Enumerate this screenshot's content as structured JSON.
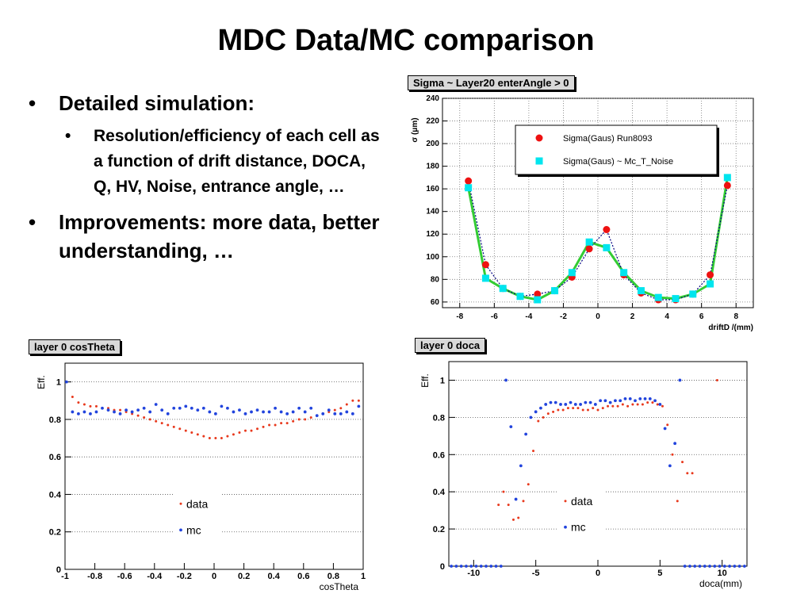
{
  "slide": {
    "title": "MDC Data/MC comparison",
    "bullets": [
      {
        "text": "Detailed simulation:",
        "level": 1
      },
      {
        "text": "Resolution/efficiency of each cell as a function of drift distance, DOCA, Q, HV, Noise, entrance angle, …",
        "level": 2
      },
      {
        "text": "Improvements: more data, better understanding, …",
        "level": 1
      }
    ]
  },
  "chart_data": [
    {
      "type": "line",
      "title": "Sigma ~ Layer20  enterAngle > 0",
      "xlabel": "driftD /(mm)",
      "ylabel": "σ (μm)",
      "xlim": [
        -9,
        9
      ],
      "ylim": [
        55,
        240
      ],
      "xticks": [
        -8,
        -6,
        -4,
        -2,
        0,
        2,
        4,
        6,
        8
      ],
      "yticks": [
        60,
        80,
        100,
        120,
        140,
        160,
        180,
        200,
        220,
        240
      ],
      "grid": true,
      "legend_position": "top-right",
      "fit_color": "#33cc33",
      "series": [
        {
          "name": "Sigma(Gaus)   Run8093",
          "color": "#ee1111",
          "marker": "circle",
          "x": [
            -7.5,
            -6.5,
            -5.5,
            -4.5,
            -3.5,
            -2.5,
            -1.5,
            -0.5,
            0.5,
            1.5,
            2.5,
            3.5,
            4.5,
            5.5,
            6.5,
            7.5
          ],
          "y": [
            167,
            93,
            72,
            65,
            67,
            70,
            82,
            107,
            124,
            84,
            68,
            62,
            62,
            67,
            84,
            163
          ]
        },
        {
          "name": "Sigma(Gaus) ~ Mc_T_Noise",
          "color": "#00e5ee",
          "marker": "square",
          "x": [
            -7.5,
            -6.5,
            -5.5,
            -4.5,
            -3.5,
            -2.5,
            -1.5,
            -0.5,
            0.5,
            1.5,
            2.5,
            3.5,
            4.5,
            5.5,
            6.5,
            7.5
          ],
          "y": [
            161,
            81,
            72,
            65,
            62,
            70,
            86,
            113,
            108,
            86,
            70,
            64,
            63,
            67,
            76,
            170
          ]
        }
      ]
    },
    {
      "type": "scatter",
      "title": "layer 0 cosTheta",
      "xlabel": "cosTheta",
      "ylabel": "Eff.",
      "xlim": [
        -1,
        1
      ],
      "ylim": [
        0,
        1.1
      ],
      "xticks": [
        -1,
        -0.8,
        -0.6,
        -0.4,
        -0.2,
        0,
        0.2,
        0.4,
        0.6,
        0.8,
        1
      ],
      "yticks": [
        0,
        0.2,
        0.4,
        0.6,
        0.8,
        1
      ],
      "series": [
        {
          "name": "data",
          "color": "#e8391d",
          "x": [
            -0.95,
            -0.91,
            -0.87,
            -0.83,
            -0.79,
            -0.75,
            -0.71,
            -0.67,
            -0.63,
            -0.59,
            -0.55,
            -0.51,
            -0.47,
            -0.43,
            -0.39,
            -0.35,
            -0.31,
            -0.27,
            -0.23,
            -0.19,
            -0.15,
            -0.11,
            -0.07,
            -0.03,
            0.01,
            0.05,
            0.09,
            0.13,
            0.17,
            0.21,
            0.25,
            0.29,
            0.33,
            0.37,
            0.41,
            0.45,
            0.49,
            0.53,
            0.57,
            0.61,
            0.65,
            0.69,
            0.73,
            0.77,
            0.81,
            0.85,
            0.89,
            0.93,
            0.97
          ],
          "y": [
            0.92,
            0.89,
            0.88,
            0.87,
            0.87,
            0.86,
            0.86,
            0.85,
            0.85,
            0.84,
            0.83,
            0.82,
            0.81,
            0.8,
            0.79,
            0.78,
            0.77,
            0.76,
            0.75,
            0.74,
            0.73,
            0.72,
            0.71,
            0.7,
            0.7,
            0.7,
            0.71,
            0.72,
            0.73,
            0.74,
            0.74,
            0.75,
            0.76,
            0.77,
            0.77,
            0.78,
            0.78,
            0.79,
            0.8,
            0.8,
            0.81,
            0.82,
            0.83,
            0.84,
            0.85,
            0.86,
            0.88,
            0.9,
            0.9
          ]
        },
        {
          "name": "mc",
          "color": "#2244dd",
          "x": [
            -0.99,
            -0.95,
            -0.91,
            -0.87,
            -0.83,
            -0.79,
            -0.75,
            -0.71,
            -0.67,
            -0.63,
            -0.59,
            -0.55,
            -0.51,
            -0.47,
            -0.43,
            -0.39,
            -0.35,
            -0.31,
            -0.27,
            -0.23,
            -0.19,
            -0.15,
            -0.11,
            -0.07,
            -0.03,
            0.01,
            0.05,
            0.09,
            0.13,
            0.17,
            0.21,
            0.25,
            0.29,
            0.33,
            0.37,
            0.41,
            0.45,
            0.49,
            0.53,
            0.57,
            0.61,
            0.65,
            0.69,
            0.73,
            0.77,
            0.81,
            0.85,
            0.89,
            0.93,
            0.97
          ],
          "y": [
            1.0,
            0.84,
            0.83,
            0.84,
            0.83,
            0.84,
            0.86,
            0.85,
            0.84,
            0.83,
            0.85,
            0.84,
            0.85,
            0.86,
            0.84,
            0.88,
            0.85,
            0.83,
            0.86,
            0.86,
            0.87,
            0.86,
            0.85,
            0.86,
            0.84,
            0.83,
            0.87,
            0.86,
            0.84,
            0.85,
            0.83,
            0.84,
            0.85,
            0.84,
            0.84,
            0.86,
            0.84,
            0.83,
            0.84,
            0.86,
            0.84,
            0.86,
            0.82,
            0.83,
            0.85,
            0.83,
            0.83,
            0.84,
            0.83,
            0.87
          ]
        }
      ]
    },
    {
      "type": "scatter",
      "title": "layer 0 doca",
      "xlabel": "doca(mm)",
      "ylabel": "Eff.",
      "xlim": [
        -12,
        12
      ],
      "ylim": [
        0,
        1.1
      ],
      "xticks": [
        -10,
        -5,
        0,
        5,
        10
      ],
      "yticks": [
        0,
        0.2,
        0.4,
        0.6,
        0.8,
        1
      ],
      "series": [
        {
          "name": "data",
          "color": "#e8391d",
          "x": [
            -8.0,
            -7.6,
            -7.2,
            -6.8,
            -6.4,
            -6.0,
            -5.6,
            -5.2,
            -4.8,
            -4.4,
            -4.0,
            -3.6,
            -3.2,
            -2.8,
            -2.4,
            -2.0,
            -1.6,
            -1.2,
            -0.8,
            -0.4,
            0.0,
            0.4,
            0.8,
            1.2,
            1.6,
            2.0,
            2.4,
            2.8,
            3.2,
            3.6,
            4.0,
            4.4,
            4.8,
            5.2,
            5.6,
            6.0,
            6.4,
            6.8,
            7.2,
            7.6,
            9.6
          ],
          "y": [
            0.33,
            0.4,
            0.33,
            0.25,
            0.26,
            0.35,
            0.44,
            0.62,
            0.78,
            0.8,
            0.82,
            0.83,
            0.84,
            0.84,
            0.85,
            0.85,
            0.85,
            0.84,
            0.84,
            0.85,
            0.84,
            0.85,
            0.86,
            0.86,
            0.86,
            0.87,
            0.86,
            0.87,
            0.87,
            0.87,
            0.88,
            0.88,
            0.87,
            0.86,
            0.76,
            0.6,
            0.35,
            0.56,
            0.5,
            0.5,
            1.0
          ]
        },
        {
          "name": "mc",
          "color": "#2244dd",
          "x": [
            -11.8,
            -11.4,
            -11.0,
            -10.6,
            -10.2,
            -9.8,
            -9.4,
            -9.0,
            -8.6,
            -8.2,
            -7.8,
            -7.4,
            -7.0,
            -6.6,
            -6.2,
            -5.8,
            -5.4,
            -5.0,
            -4.6,
            -4.2,
            -3.8,
            -3.4,
            -3.0,
            -2.6,
            -2.2,
            -1.8,
            -1.4,
            -1.0,
            -0.6,
            -0.2,
            0.2,
            0.6,
            1.0,
            1.4,
            1.8,
            2.2,
            2.6,
            3.0,
            3.4,
            3.8,
            4.2,
            4.6,
            5.0,
            5.4,
            5.8,
            6.2,
            6.6,
            7.0,
            7.4,
            7.8,
            8.2,
            8.6,
            9.0,
            9.4,
            9.8,
            10.2,
            10.6,
            11.0,
            11.4,
            11.8
          ],
          "y": [
            0,
            0,
            0,
            0,
            0,
            0,
            0,
            0,
            0,
            0,
            0,
            1.0,
            0.75,
            0.36,
            0.54,
            0.71,
            0.8,
            0.83,
            0.85,
            0.87,
            0.88,
            0.88,
            0.87,
            0.87,
            0.88,
            0.87,
            0.87,
            0.88,
            0.88,
            0.87,
            0.89,
            0.89,
            0.88,
            0.89,
            0.89,
            0.9,
            0.9,
            0.89,
            0.9,
            0.9,
            0.9,
            0.89,
            0.87,
            0.74,
            0.54,
            0.66,
            1.0,
            0,
            0,
            0,
            0,
            0,
            0,
            0,
            0,
            0,
            0,
            0,
            0,
            0
          ]
        }
      ]
    }
  ]
}
